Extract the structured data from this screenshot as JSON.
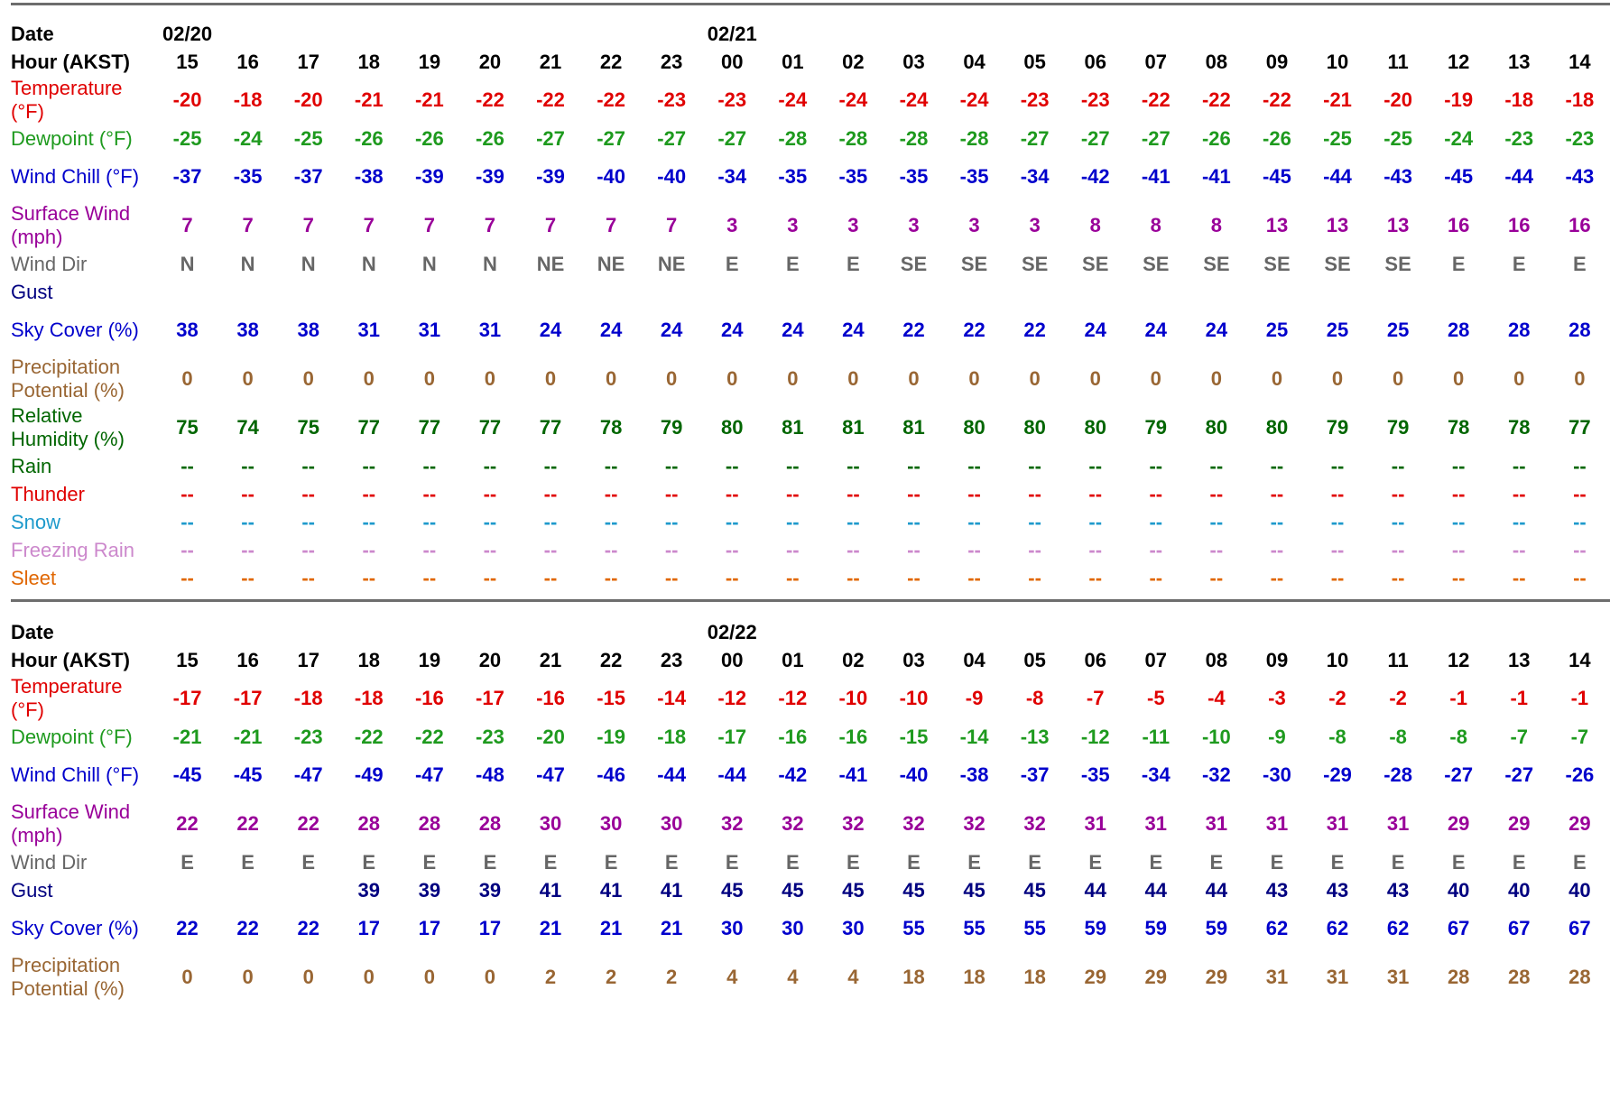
{
  "colors": {
    "temperature": "#e00000",
    "dewpoint": "#1e9a1e",
    "wind_chill": "#0000cc",
    "surface_wind": "#990099",
    "wind_dir": "#666666",
    "gust": "#000080",
    "sky_cover": "#0000cc",
    "precip": "#996633",
    "humidity": "#006600",
    "rain": "#006600",
    "thunder": "#e00000",
    "snow": "#1e9acc",
    "freezing_rain": "#cc88cc",
    "sleet": "#e06600"
  },
  "blocks": [
    {
      "date_label": "Date",
      "hour_label": "Hour (AKST)",
      "dates": [
        "02/20",
        "",
        "",
        "",
        "",
        "",
        "",
        "",
        "",
        "02/21",
        "",
        "",
        "",
        "",
        "",
        "",
        "",
        "",
        "",
        "",
        "",
        "",
        "",
        ""
      ],
      "hours": [
        "15",
        "16",
        "17",
        "18",
        "19",
        "20",
        "21",
        "22",
        "23",
        "00",
        "01",
        "02",
        "03",
        "04",
        "05",
        "06",
        "07",
        "08",
        "09",
        "10",
        "11",
        "12",
        "13",
        "14"
      ],
      "rows": [
        {
          "key": "temperature",
          "label": "Temperature (°F)",
          "values": [
            "-20",
            "-18",
            "-20",
            "-21",
            "-21",
            "-22",
            "-22",
            "-22",
            "-23",
            "-23",
            "-24",
            "-24",
            "-24",
            "-24",
            "-23",
            "-23",
            "-22",
            "-22",
            "-22",
            "-21",
            "-20",
            "-19",
            "-18",
            "-18"
          ]
        },
        {
          "key": "dewpoint",
          "label": "Dewpoint (°F)",
          "values": [
            "-25",
            "-24",
            "-25",
            "-26",
            "-26",
            "-26",
            "-27",
            "-27",
            "-27",
            "-27",
            "-28",
            "-28",
            "-28",
            "-28",
            "-27",
            "-27",
            "-27",
            "-26",
            "-26",
            "-25",
            "-25",
            "-24",
            "-23",
            "-23"
          ]
        },
        {
          "key": "wind_chill",
          "label": "Wind Chill (°F)",
          "values": [
            "-37",
            "-35",
            "-37",
            "-38",
            "-39",
            "-39",
            "-39",
            "-40",
            "-40",
            "-34",
            "-35",
            "-35",
            "-35",
            "-35",
            "-34",
            "-42",
            "-41",
            "-41",
            "-45",
            "-44",
            "-43",
            "-45",
            "-44",
            "-43"
          ]
        },
        {
          "key": "surface_wind",
          "label": "Surface Wind (mph)",
          "values": [
            "7",
            "7",
            "7",
            "7",
            "7",
            "7",
            "7",
            "7",
            "7",
            "3",
            "3",
            "3",
            "3",
            "3",
            "3",
            "8",
            "8",
            "8",
            "13",
            "13",
            "13",
            "16",
            "16",
            "16"
          ]
        },
        {
          "key": "wind_dir",
          "label": "Wind Dir",
          "values": [
            "N",
            "N",
            "N",
            "N",
            "N",
            "N",
            "NE",
            "NE",
            "NE",
            "E",
            "E",
            "E",
            "SE",
            "SE",
            "SE",
            "SE",
            "SE",
            "SE",
            "SE",
            "SE",
            "SE",
            "E",
            "E",
            "E"
          ]
        },
        {
          "key": "gust",
          "label": "Gust",
          "values": [
            "",
            "",
            "",
            "",
            "",
            "",
            "",
            "",
            "",
            "",
            "",
            "",
            "",
            "",
            "",
            "",
            "",
            "",
            "",
            "",
            "",
            "",
            "",
            ""
          ]
        },
        {
          "key": "sky_cover",
          "label": "Sky Cover (%)",
          "values": [
            "38",
            "38",
            "38",
            "31",
            "31",
            "31",
            "24",
            "24",
            "24",
            "24",
            "24",
            "24",
            "22",
            "22",
            "22",
            "24",
            "24",
            "24",
            "25",
            "25",
            "25",
            "28",
            "28",
            "28"
          ]
        },
        {
          "key": "precip",
          "label": "Precipitation Potential (%)",
          "values": [
            "0",
            "0",
            "0",
            "0",
            "0",
            "0",
            "0",
            "0",
            "0",
            "0",
            "0",
            "0",
            "0",
            "0",
            "0",
            "0",
            "0",
            "0",
            "0",
            "0",
            "0",
            "0",
            "0",
            "0"
          ]
        },
        {
          "key": "humidity",
          "label": "Relative Humidity (%)",
          "values": [
            "75",
            "74",
            "75",
            "77",
            "77",
            "77",
            "77",
            "78",
            "79",
            "80",
            "81",
            "81",
            "81",
            "80",
            "80",
            "80",
            "79",
            "80",
            "80",
            "79",
            "79",
            "78",
            "78",
            "77"
          ]
        },
        {
          "key": "rain",
          "label": "Rain",
          "values": [
            "--",
            "--",
            "--",
            "--",
            "--",
            "--",
            "--",
            "--",
            "--",
            "--",
            "--",
            "--",
            "--",
            "--",
            "--",
            "--",
            "--",
            "--",
            "--",
            "--",
            "--",
            "--",
            "--",
            "--"
          ]
        },
        {
          "key": "thunder",
          "label": "Thunder",
          "values": [
            "--",
            "--",
            "--",
            "--",
            "--",
            "--",
            "--",
            "--",
            "--",
            "--",
            "--",
            "--",
            "--",
            "--",
            "--",
            "--",
            "--",
            "--",
            "--",
            "--",
            "--",
            "--",
            "--",
            "--"
          ]
        },
        {
          "key": "snow",
          "label": "Snow",
          "values": [
            "--",
            "--",
            "--",
            "--",
            "--",
            "--",
            "--",
            "--",
            "--",
            "--",
            "--",
            "--",
            "--",
            "--",
            "--",
            "--",
            "--",
            "--",
            "--",
            "--",
            "--",
            "--",
            "--",
            "--"
          ]
        },
        {
          "key": "freezing_rain",
          "label": "Freezing Rain",
          "values": [
            "--",
            "--",
            "--",
            "--",
            "--",
            "--",
            "--",
            "--",
            "--",
            "--",
            "--",
            "--",
            "--",
            "--",
            "--",
            "--",
            "--",
            "--",
            "--",
            "--",
            "--",
            "--",
            "--",
            "--"
          ]
        },
        {
          "key": "sleet",
          "label": "Sleet",
          "values": [
            "--",
            "--",
            "--",
            "--",
            "--",
            "--",
            "--",
            "--",
            "--",
            "--",
            "--",
            "--",
            "--",
            "--",
            "--",
            "--",
            "--",
            "--",
            "--",
            "--",
            "--",
            "--",
            "--",
            "--"
          ]
        }
      ]
    },
    {
      "date_label": "Date",
      "hour_label": "Hour (AKST)",
      "dates": [
        "",
        "",
        "",
        "",
        "",
        "",
        "",
        "",
        "",
        "02/22",
        "",
        "",
        "",
        "",
        "",
        "",
        "",
        "",
        "",
        "",
        "",
        "",
        "",
        ""
      ],
      "hours": [
        "15",
        "16",
        "17",
        "18",
        "19",
        "20",
        "21",
        "22",
        "23",
        "00",
        "01",
        "02",
        "03",
        "04",
        "05",
        "06",
        "07",
        "08",
        "09",
        "10",
        "11",
        "12",
        "13",
        "14"
      ],
      "rows": [
        {
          "key": "temperature",
          "label": "Temperature (°F)",
          "values": [
            "-17",
            "-17",
            "-18",
            "-18",
            "-16",
            "-17",
            "-16",
            "-15",
            "-14",
            "-12",
            "-12",
            "-10",
            "-10",
            "-9",
            "-8",
            "-7",
            "-5",
            "-4",
            "-3",
            "-2",
            "-2",
            "-1",
            "-1",
            "-1"
          ]
        },
        {
          "key": "dewpoint",
          "label": "Dewpoint (°F)",
          "values": [
            "-21",
            "-21",
            "-23",
            "-22",
            "-22",
            "-23",
            "-20",
            "-19",
            "-18",
            "-17",
            "-16",
            "-16",
            "-15",
            "-14",
            "-13",
            "-12",
            "-11",
            "-10",
            "-9",
            "-8",
            "-8",
            "-8",
            "-7",
            "-7"
          ]
        },
        {
          "key": "wind_chill",
          "label": "Wind Chill (°F)",
          "values": [
            "-45",
            "-45",
            "-47",
            "-49",
            "-47",
            "-48",
            "-47",
            "-46",
            "-44",
            "-44",
            "-42",
            "-41",
            "-40",
            "-38",
            "-37",
            "-35",
            "-34",
            "-32",
            "-30",
            "-29",
            "-28",
            "-27",
            "-27",
            "-26"
          ]
        },
        {
          "key": "surface_wind",
          "label": "Surface Wind (mph)",
          "values": [
            "22",
            "22",
            "22",
            "28",
            "28",
            "28",
            "30",
            "30",
            "30",
            "32",
            "32",
            "32",
            "32",
            "32",
            "32",
            "31",
            "31",
            "31",
            "31",
            "31",
            "31",
            "29",
            "29",
            "29"
          ]
        },
        {
          "key": "wind_dir",
          "label": "Wind Dir",
          "values": [
            "E",
            "E",
            "E",
            "E",
            "E",
            "E",
            "E",
            "E",
            "E",
            "E",
            "E",
            "E",
            "E",
            "E",
            "E",
            "E",
            "E",
            "E",
            "E",
            "E",
            "E",
            "E",
            "E",
            "E"
          ]
        },
        {
          "key": "gust",
          "label": "Gust",
          "values": [
            "",
            "",
            "",
            "39",
            "39",
            "39",
            "41",
            "41",
            "41",
            "45",
            "45",
            "45",
            "45",
            "45",
            "45",
            "44",
            "44",
            "44",
            "43",
            "43",
            "43",
            "40",
            "40",
            "40"
          ]
        },
        {
          "key": "sky_cover",
          "label": "Sky Cover (%)",
          "values": [
            "22",
            "22",
            "22",
            "17",
            "17",
            "17",
            "21",
            "21",
            "21",
            "30",
            "30",
            "30",
            "55",
            "55",
            "55",
            "59",
            "59",
            "59",
            "62",
            "62",
            "62",
            "67",
            "67",
            "67"
          ]
        },
        {
          "key": "precip",
          "label": "Precipitation Potential (%)",
          "values": [
            "0",
            "0",
            "0",
            "0",
            "0",
            "0",
            "2",
            "2",
            "2",
            "4",
            "4",
            "4",
            "18",
            "18",
            "18",
            "29",
            "29",
            "29",
            "31",
            "31",
            "31",
            "28",
            "28",
            "28"
          ]
        }
      ]
    }
  ]
}
